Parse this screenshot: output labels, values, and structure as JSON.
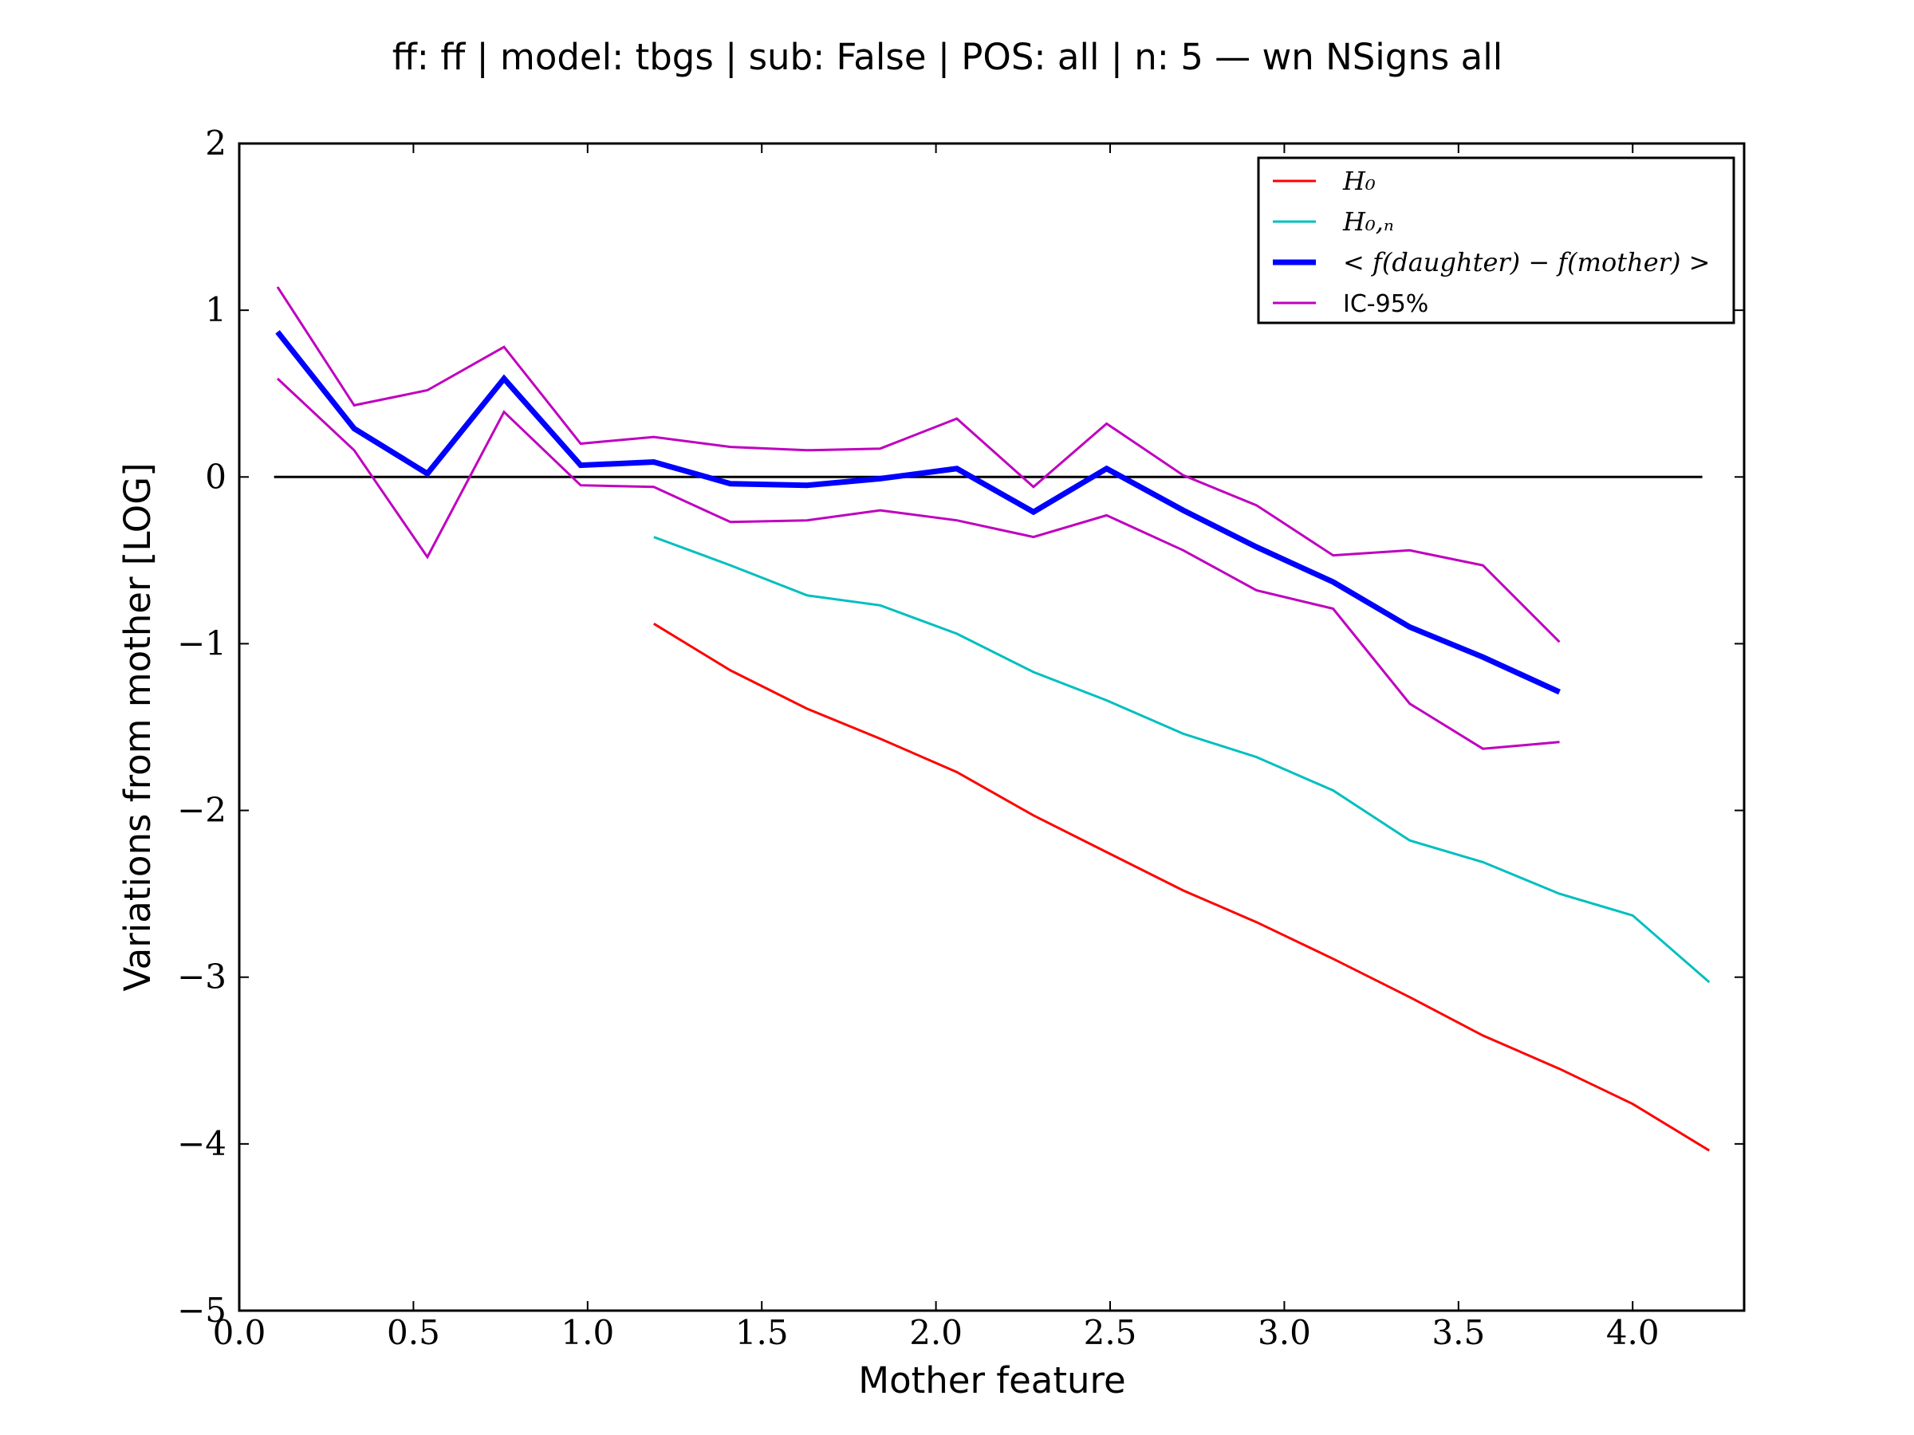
{
  "chart_data": {
    "type": "line",
    "title": "ff: ff | model: tbgs | sub: False | POS: all | n: 5 — wn NSigns all",
    "xlabel": "Mother feature",
    "ylabel": "Variations from mother [LOG]",
    "xlim": [
      0.0,
      4.32
    ],
    "ylim": [
      -5,
      2
    ],
    "xticks": [
      0.0,
      0.5,
      1.0,
      1.5,
      2.0,
      2.5,
      3.0,
      3.5,
      4.0
    ],
    "xtick_labels": [
      "0.0",
      "0.5",
      "1.0",
      "1.5",
      "2.0",
      "2.5",
      "3.0",
      "3.5",
      "4.0"
    ],
    "yticks": [
      2,
      1,
      0,
      -1,
      -2,
      -3,
      -4,
      -5
    ],
    "ytick_labels": [
      "2",
      "1",
      "0",
      "−1",
      "−2",
      "−3",
      "−4",
      "−5"
    ],
    "grid": false,
    "legend_position": "top-right",
    "legend": [
      {
        "label": "H₀",
        "color": "#ff0000",
        "width": "thin"
      },
      {
        "label": "H₀,ₙ",
        "color": "#00bfbf",
        "width": "thin"
      },
      {
        "label": "< f(daughter) − f(mother) >",
        "color": "#0000ff",
        "width": "thick"
      },
      {
        "label": "IC-95%",
        "color": "#bf00bf",
        "width": "thin"
      }
    ],
    "reference_line": {
      "y": 0,
      "x": [
        0.1,
        4.2
      ],
      "color": "#000000"
    },
    "series": [
      {
        "name": "H₀",
        "color": "#ff0000",
        "x": [
          1.19,
          1.41,
          1.63,
          1.84,
          2.06,
          2.28,
          2.49,
          2.71,
          2.92,
          3.14,
          3.36,
          3.57,
          3.79,
          4.0,
          4.22
        ],
        "values": [
          -0.88,
          -1.16,
          -1.39,
          -1.57,
          -1.77,
          -2.03,
          -2.25,
          -2.48,
          -2.67,
          -2.89,
          -3.12,
          -3.35,
          -3.55,
          -3.76,
          -4.04
        ]
      },
      {
        "name": "H₀,ₙ",
        "color": "#00bfbf",
        "x": [
          1.19,
          1.41,
          1.63,
          1.84,
          2.06,
          2.28,
          2.49,
          2.71,
          2.92,
          3.14,
          3.36,
          3.57,
          3.79,
          4.0,
          4.22
        ],
        "values": [
          -0.36,
          -0.53,
          -0.71,
          -0.77,
          -0.94,
          -1.17,
          -1.34,
          -1.54,
          -1.68,
          -1.88,
          -2.18,
          -2.31,
          -2.5,
          -2.63,
          -3.03
        ]
      },
      {
        "name": "< f(daughter) − f(mother) >",
        "color": "#0000ff",
        "x": [
          0.11,
          0.33,
          0.54,
          0.76,
          0.98,
          1.19,
          1.41,
          1.63,
          1.84,
          2.06,
          2.28,
          2.49,
          2.71,
          2.92,
          3.14,
          3.36,
          3.57,
          3.79
        ],
        "values": [
          0.87,
          0.29,
          0.02,
          0.59,
          0.07,
          0.09,
          -0.04,
          -0.05,
          -0.01,
          0.05,
          -0.21,
          0.05,
          -0.2,
          -0.42,
          -0.63,
          -0.9,
          -1.08,
          -1.29
        ]
      },
      {
        "name": "IC-95% upper",
        "color": "#bf00bf",
        "x": [
          0.11,
          0.33,
          0.54,
          0.76,
          0.98,
          1.19,
          1.41,
          1.63,
          1.84,
          2.06,
          2.28,
          2.49,
          2.71,
          2.92,
          3.14,
          3.36,
          3.57,
          3.79
        ],
        "values": [
          1.14,
          0.43,
          0.52,
          0.78,
          0.2,
          0.24,
          0.18,
          0.16,
          0.17,
          0.35,
          -0.06,
          0.32,
          0.01,
          -0.17,
          -0.47,
          -0.44,
          -0.53,
          -0.99
        ]
      },
      {
        "name": "IC-95% lower",
        "color": "#bf00bf",
        "x": [
          0.11,
          0.33,
          0.54,
          0.76,
          0.98,
          1.19,
          1.41,
          1.63,
          1.84,
          2.06,
          2.28,
          2.49,
          2.71,
          2.92,
          3.14,
          3.36,
          3.57,
          3.79
        ],
        "values": [
          0.59,
          0.16,
          -0.48,
          0.39,
          -0.05,
          -0.06,
          -0.27,
          -0.26,
          -0.2,
          -0.26,
          -0.36,
          -0.23,
          -0.44,
          -0.68,
          -0.79,
          -1.36,
          -1.63,
          -1.59
        ]
      }
    ]
  }
}
